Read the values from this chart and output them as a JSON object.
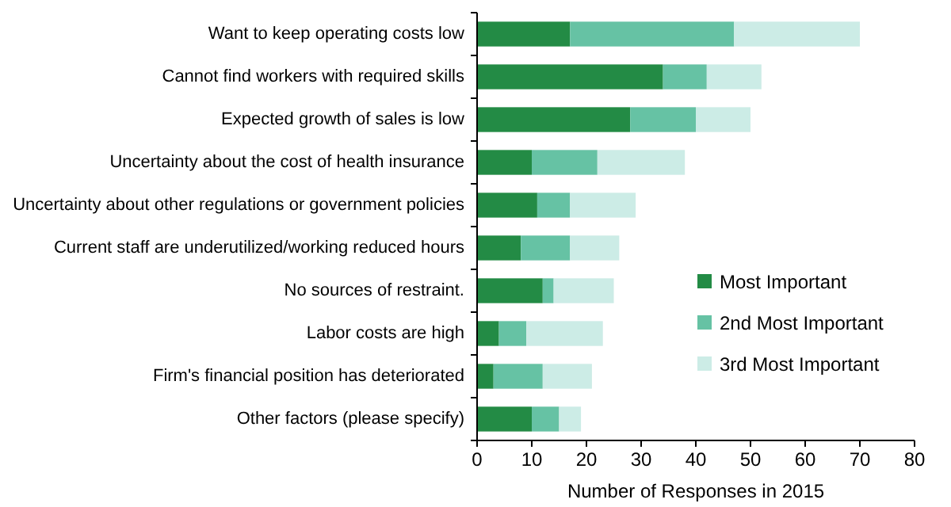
{
  "chart_data": {
    "type": "bar",
    "orientation": "horizontal",
    "stacked": true,
    "xlabel": "Number of Responses in 2015",
    "categories": [
      "Want to keep operating costs low",
      "Cannot find workers with required skills",
      "Expected growth of sales is low",
      "Uncertainty about the cost of health insurance",
      "Uncertainty about other regulations or government policies",
      "Current staff are underutilized/working reduced hours",
      "No sources of restraint.",
      "Labor costs are high",
      "Firm's financial position has deteriorated",
      "Other factors (please specify)"
    ],
    "series": [
      {
        "name": "Most Important",
        "color": "#238b45",
        "values": [
          17,
          34,
          28,
          10,
          11,
          8,
          12,
          4,
          3,
          10
        ]
      },
      {
        "name": "2nd Most Important",
        "color": "#66c2a4",
        "values": [
          30,
          8,
          12,
          12,
          6,
          9,
          2,
          5,
          9,
          5
        ]
      },
      {
        "name": "3rd Most Important",
        "color": "#ccece6",
        "values": [
          23,
          10,
          10,
          16,
          12,
          9,
          11,
          14,
          9,
          4
        ]
      }
    ],
    "xlim": [
      0,
      80
    ],
    "xticks": [
      0,
      10,
      20,
      30,
      40,
      50,
      60,
      70,
      80
    ],
    "grid": false,
    "legend": "right"
  }
}
